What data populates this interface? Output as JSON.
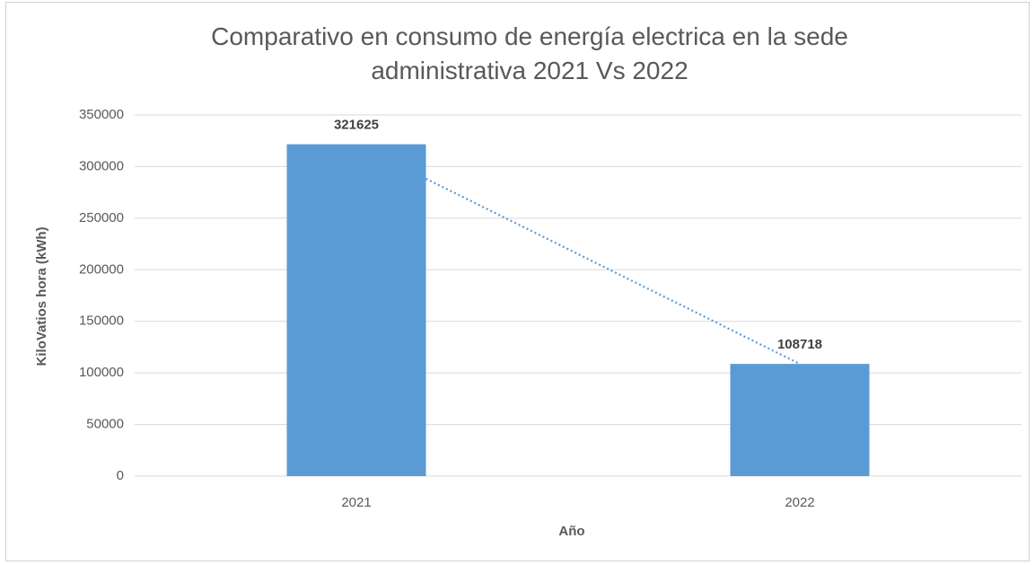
{
  "chart_data": {
    "type": "bar",
    "title": "Comparativo en consumo de energía electrica en la sede administrativa 2021 Vs 2022",
    "x_label": "Año",
    "y_label": "KiloVatios hora (kWh)",
    "categories": [
      "2021",
      "2022"
    ],
    "values": [
      321625,
      108718
    ],
    "color": "#5b9bd5",
    "ylim": [
      0,
      350000
    ],
    "yticks": [
      0,
      50000,
      100000,
      150000,
      200000,
      250000,
      300000,
      350000
    ],
    "grid": true,
    "trendline": true
  }
}
